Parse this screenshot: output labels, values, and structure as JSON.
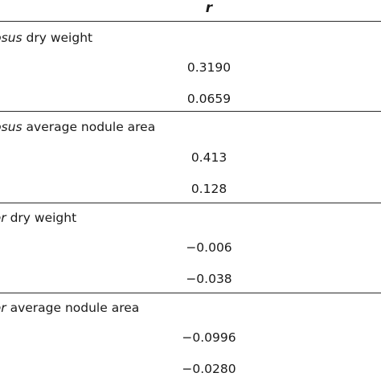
{
  "table": {
    "column_header": "r",
    "sections": [
      {
        "species": "igosus",
        "measure": " dry weight",
        "values": [
          "0.3190",
          "0.0659"
        ]
      },
      {
        "species": "igosus",
        "measure": " average nodule area",
        "values": [
          "0.413",
          "0.128"
        ]
      },
      {
        "species": "olor",
        "measure": " dry weight",
        "values": [
          "−0.006",
          "−0.038"
        ]
      },
      {
        "species": "olor",
        "measure": " average nodule area",
        "values": [
          "−0.0996",
          "−0.0280"
        ]
      }
    ]
  }
}
